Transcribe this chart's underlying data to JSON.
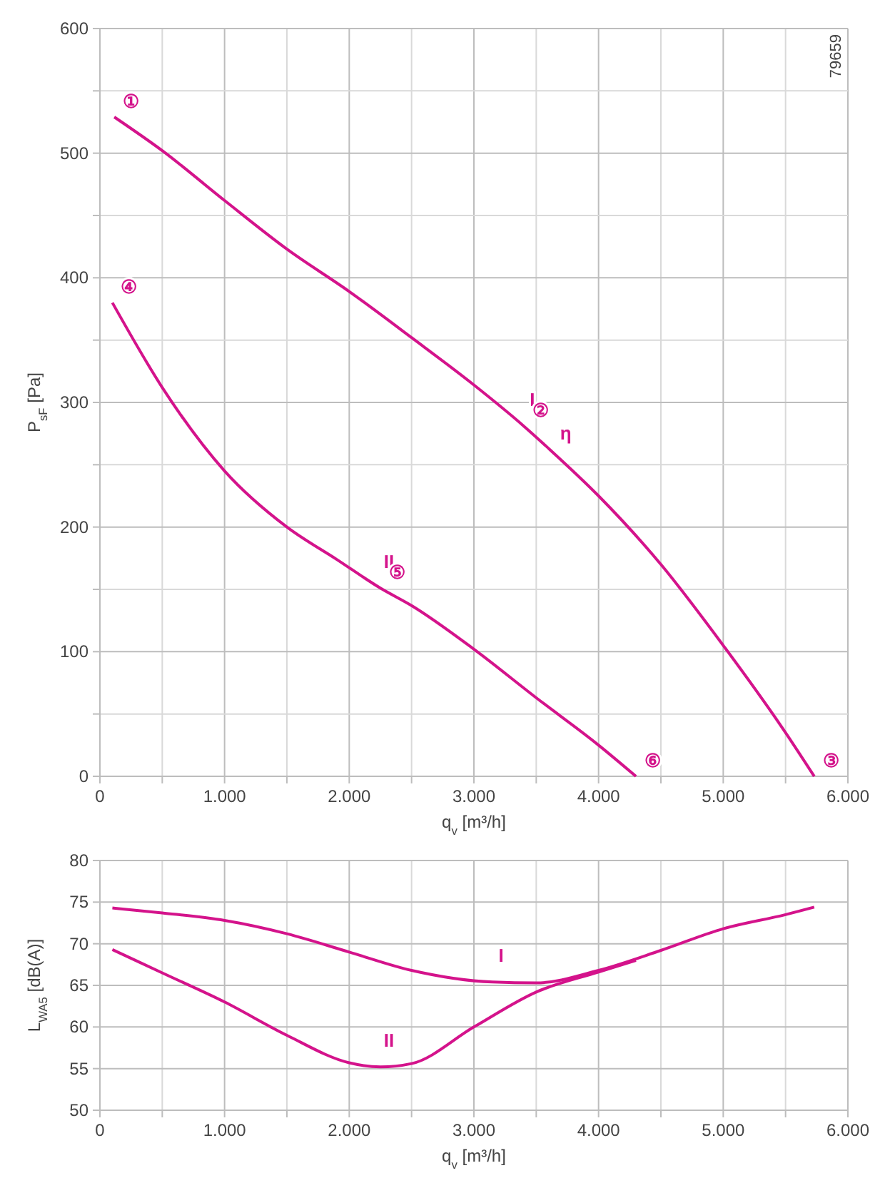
{
  "chart_data": [
    {
      "type": "line",
      "xlabel": "q$_{v}$ [m³/h]",
      "ylabel": "P$_{sF}$ [Pa]",
      "xlim": [
        0,
        6000
      ],
      "ylim": [
        0,
        600
      ],
      "xticks": [
        0,
        {
          "value": 500,
          "label": null
        },
        {
          "value": 1000,
          "label": "1.000"
        },
        {
          "value": 1500,
          "label": null
        },
        {
          "value": 2000,
          "label": "2.000"
        },
        {
          "value": 2500,
          "label": null
        },
        {
          "value": 3000,
          "label": "3.000"
        },
        {
          "value": 3500,
          "label": null
        },
        {
          "value": 4000,
          "label": "4.000"
        },
        {
          "value": 4500,
          "label": null
        },
        {
          "value": 5000,
          "label": "5.000"
        },
        {
          "value": 5500,
          "label": null
        },
        {
          "value": 6000,
          "label": "6.000"
        }
      ],
      "yticks": [
        0,
        {
          "value": 50,
          "label": null
        },
        100,
        {
          "value": 150,
          "label": null
        },
        200,
        {
          "value": 250,
          "label": null
        },
        300,
        {
          "value": 350,
          "label": null
        },
        400,
        {
          "value": 450,
          "label": null
        },
        500,
        {
          "value": 550,
          "label": null
        },
        600
      ],
      "grid": true,
      "marker": "none",
      "line_style": "solid",
      "series": [
        {
          "name": "I",
          "color": "#d4138b",
          "x": [
            115,
            500,
            1000,
            1500,
            2000,
            2500,
            3000,
            3400,
            3600,
            4000,
            4500,
            5000,
            5500,
            5730
          ],
          "values": [
            529,
            502,
            462,
            423,
            389,
            352,
            314,
            281,
            263,
            225,
            170,
            105,
            35,
            0
          ]
        },
        {
          "name": "II",
          "color": "#d4138b",
          "x": [
            100,
            500,
            1000,
            1500,
            1900,
            2250,
            2500,
            3000,
            3500,
            4000,
            4300
          ],
          "values": [
            380,
            312,
            245,
            200,
            174,
            151,
            137,
            102,
            63,
            25,
            0
          ]
        }
      ],
      "annotations": [
        "79659",
        {
          "text": "①",
          "x": 115,
          "y": 529
        },
        {
          "text": "②",
          "x": 3400,
          "y": 281
        },
        {
          "text": "③",
          "x": 5730,
          "y": 0
        },
        {
          "text": "④",
          "x": 100,
          "y": 380
        },
        {
          "text": "⑤",
          "x": 2250,
          "y": 151
        },
        {
          "text": "⑥",
          "x": 4300,
          "y": 0
        },
        {
          "text": "η",
          "x": 3600,
          "y": 263
        }
      ]
    },
    {
      "type": "line",
      "xlabel": "q$_{v}$ [m³/h]",
      "ylabel": "L$_{WA5}$ [dB(A)]",
      "xlim": [
        0,
        6000
      ],
      "ylim": [
        50,
        80
      ],
      "xticks": [
        0,
        {
          "value": 500,
          "label": null
        },
        {
          "value": 1000,
          "label": "1.000"
        },
        {
          "value": 1500,
          "label": null
        },
        {
          "value": 2000,
          "label": "2.000"
        },
        {
          "value": 2500,
          "label": null
        },
        {
          "value": 3000,
          "label": "3.000"
        },
        {
          "value": 3500,
          "label": null
        },
        {
          "value": 4000,
          "label": "4.000"
        },
        {
          "value": 4500,
          "label": null
        },
        {
          "value": 5000,
          "label": "5.000"
        },
        {
          "value": 5500,
          "label": null
        },
        {
          "value": 6000,
          "label": "6.000"
        }
      ],
      "yticks": [
        50,
        55,
        60,
        65,
        70,
        75,
        80
      ],
      "grid": true,
      "marker": "none",
      "line_style": "solid",
      "series": [
        {
          "name": "I",
          "color": "#d4138b",
          "x": [
            100,
            500,
            1000,
            1500,
            2000,
            2500,
            3150,
            3500,
            4000,
            4500,
            5000,
            5500,
            5730
          ],
          "values": [
            74.3,
            73.7,
            72.8,
            71.2,
            69,
            66.8,
            65.4,
            65.3,
            66.8,
            69.2,
            71.8,
            73.5,
            74.4
          ]
        },
        {
          "name": "II",
          "color": "#d4138b",
          "x": [
            100,
            500,
            1000,
            1500,
            2000,
            2250,
            2500,
            3000,
            3500,
            4000,
            4300
          ],
          "values": [
            69.3,
            66.5,
            63,
            59,
            55.7,
            55.2,
            55.6,
            60,
            64.2,
            66.6,
            68
          ]
        }
      ]
    }
  ]
}
